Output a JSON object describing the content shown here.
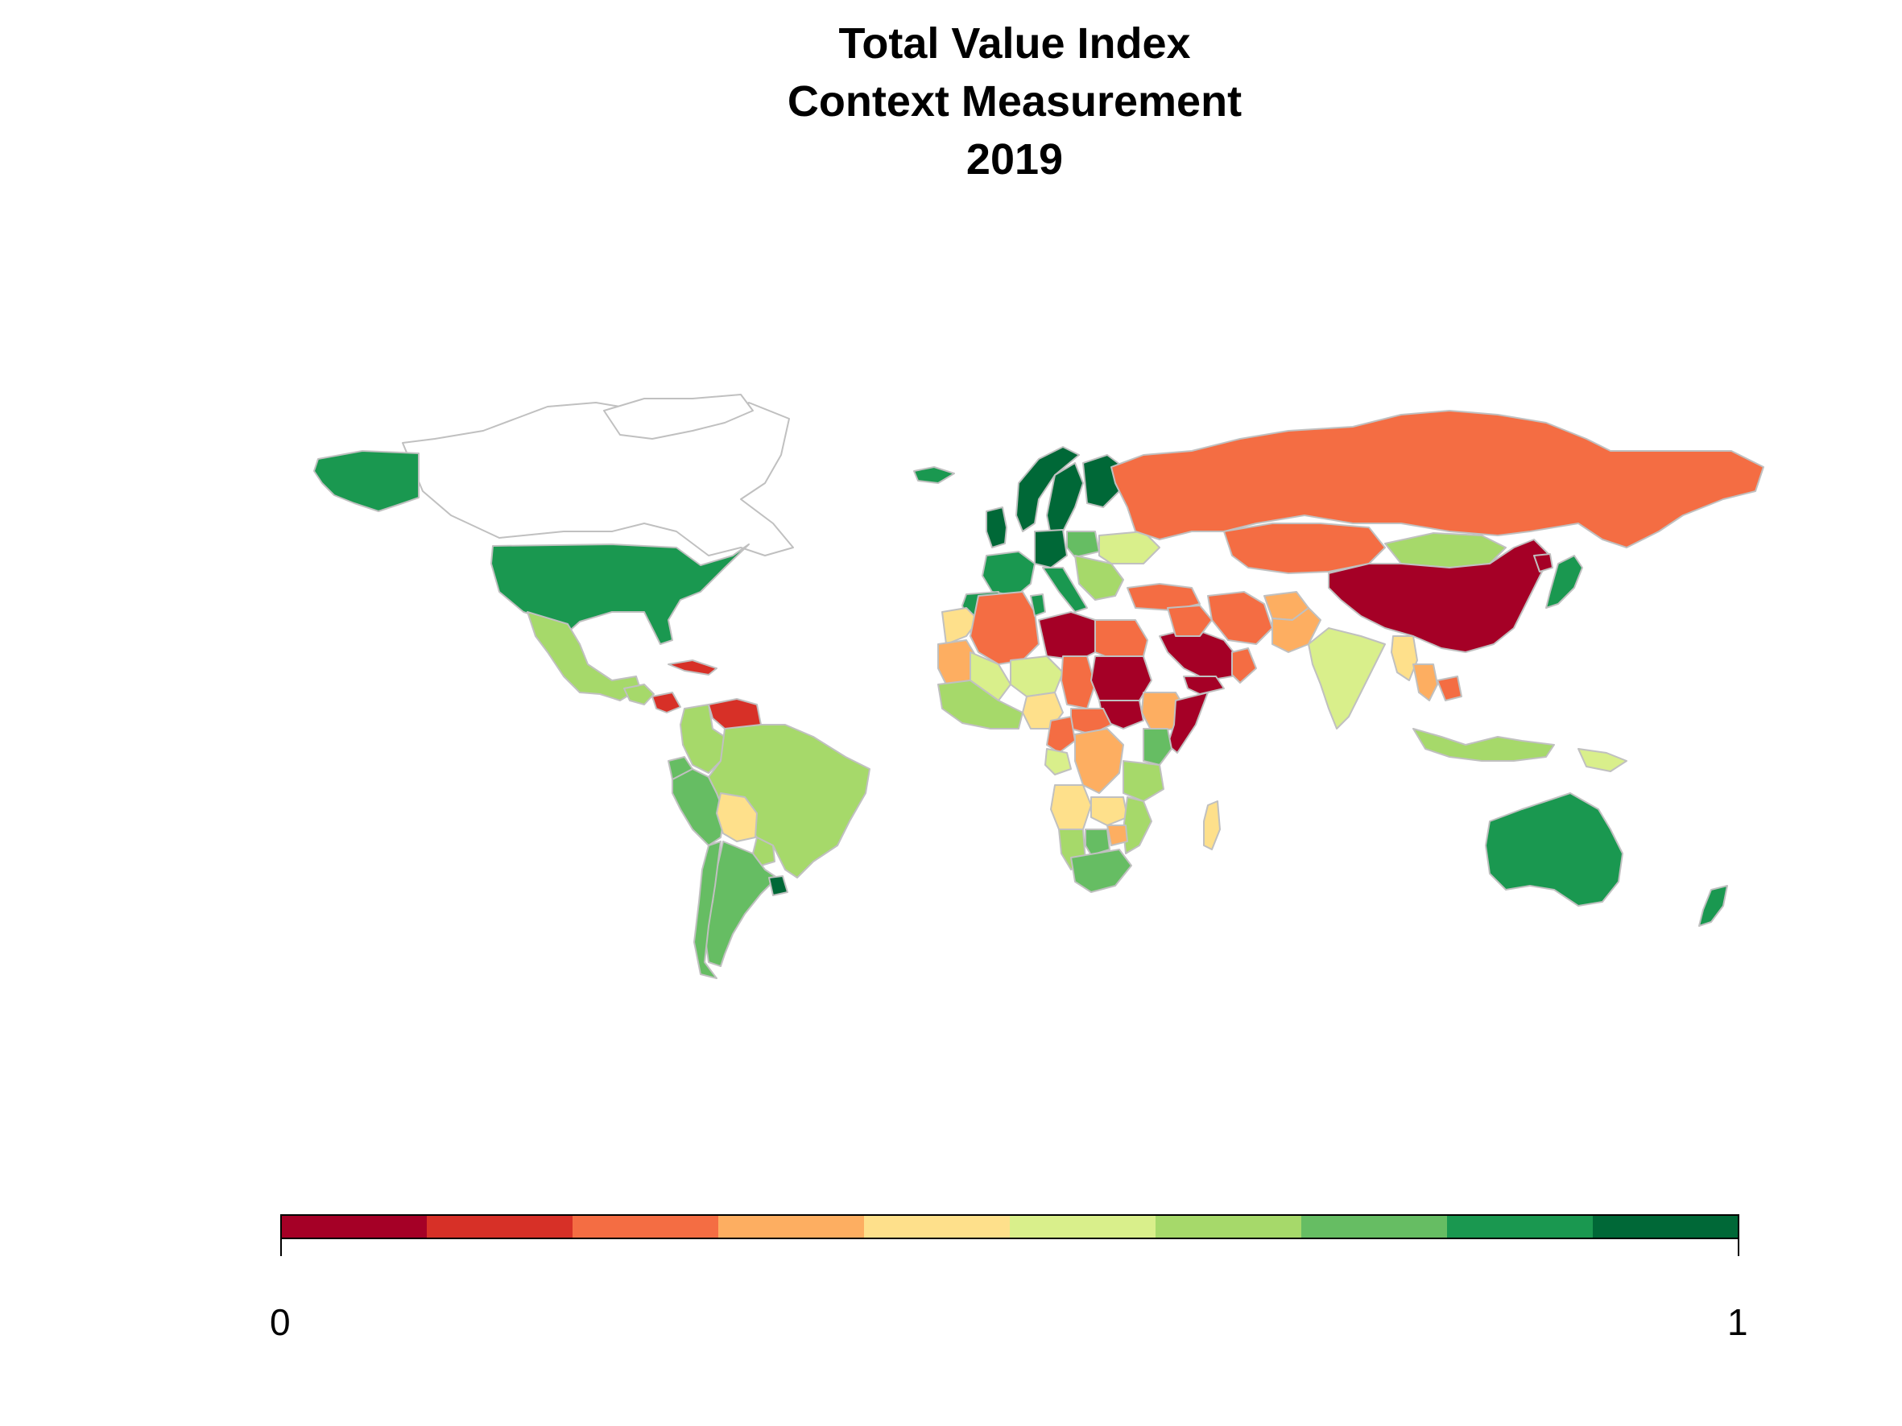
{
  "title": {
    "line1": "Total Value Index",
    "line2": "Context Measurement",
    "line3": "2019"
  },
  "legend": {
    "min_label": "0",
    "max_label": "1",
    "range": [
      0,
      1
    ],
    "palette": [
      "#a50026",
      "#d73027",
      "#f46d43",
      "#fdae61",
      "#fee08b",
      "#d9ef8b",
      "#a6d96a",
      "#66bd63",
      "#1a9850",
      "#006837"
    ]
  },
  "map": {
    "type": "choropleth",
    "projection": "equirectangular",
    "border_color": "#c0c0c0",
    "no_data_fill": "#ffffff",
    "regions": [
      {
        "name": "Canada",
        "bin": null
      },
      {
        "name": "United States",
        "bin": 8
      },
      {
        "name": "Alaska",
        "bin": 8
      },
      {
        "name": "Mexico",
        "bin": 6
      },
      {
        "name": "Guatemala",
        "bin": 6
      },
      {
        "name": "Nicaragua",
        "bin": 1
      },
      {
        "name": "Cuba",
        "bin": 1
      },
      {
        "name": "Venezuela",
        "bin": 1
      },
      {
        "name": "Colombia",
        "bin": 6
      },
      {
        "name": "Ecuador",
        "bin": 7
      },
      {
        "name": "Peru",
        "bin": 7
      },
      {
        "name": "Brazil",
        "bin": 6
      },
      {
        "name": "Bolivia",
        "bin": 4
      },
      {
        "name": "Paraguay",
        "bin": 6
      },
      {
        "name": "Argentina",
        "bin": 7
      },
      {
        "name": "Chile",
        "bin": 7
      },
      {
        "name": "Uruguay",
        "bin": 9
      },
      {
        "name": "Greenland",
        "bin": null
      },
      {
        "name": "Iceland",
        "bin": 8
      },
      {
        "name": "Norway",
        "bin": 9
      },
      {
        "name": "Sweden",
        "bin": 9
      },
      {
        "name": "Finland",
        "bin": 9
      },
      {
        "name": "United Kingdom",
        "bin": 9
      },
      {
        "name": "France",
        "bin": 8
      },
      {
        "name": "Spain",
        "bin": 8
      },
      {
        "name": "Germany",
        "bin": 9
      },
      {
        "name": "Poland",
        "bin": 7
      },
      {
        "name": "Ukraine",
        "bin": 5
      },
      {
        "name": "Italy",
        "bin": 8
      },
      {
        "name": "Balkans",
        "bin": 6
      },
      {
        "name": "Turkey",
        "bin": 2
      },
      {
        "name": "Russia",
        "bin": 2
      },
      {
        "name": "Kazakhstan",
        "bin": 2
      },
      {
        "name": "Mongolia",
        "bin": 6
      },
      {
        "name": "China",
        "bin": 0
      },
      {
        "name": "North Korea",
        "bin": 0
      },
      {
        "name": "Japan",
        "bin": 8
      },
      {
        "name": "Iran",
        "bin": 2
      },
      {
        "name": "Afghanistan",
        "bin": 3
      },
      {
        "name": "Pakistan",
        "bin": 3
      },
      {
        "name": "India",
        "bin": 5
      },
      {
        "name": "Myanmar",
        "bin": 4
      },
      {
        "name": "Thailand",
        "bin": 3
      },
      {
        "name": "Cambodia",
        "bin": 2
      },
      {
        "name": "Indonesia",
        "bin": 6
      },
      {
        "name": "Papua New Guinea",
        "bin": 5
      },
      {
        "name": "Australia",
        "bin": 8
      },
      {
        "name": "New Zealand",
        "bin": 8
      },
      {
        "name": "Saudi Arabia",
        "bin": 0
      },
      {
        "name": "Yemen",
        "bin": 0
      },
      {
        "name": "Oman",
        "bin": 2
      },
      {
        "name": "Iraq",
        "bin": 2
      },
      {
        "name": "Morocco",
        "bin": 4
      },
      {
        "name": "Algeria",
        "bin": 2
      },
      {
        "name": "Libya",
        "bin": 0
      },
      {
        "name": "Egypt",
        "bin": 2
      },
      {
        "name": "Tunisia",
        "bin": 8
      },
      {
        "name": "Mauritania",
        "bin": 3
      },
      {
        "name": "Mali",
        "bin": 5
      },
      {
        "name": "Niger",
        "bin": 5
      },
      {
        "name": "Chad",
        "bin": 2
      },
      {
        "name": "Sudan",
        "bin": 0
      },
      {
        "name": "South Sudan",
        "bin": 0
      },
      {
        "name": "Ethiopia",
        "bin": 3
      },
      {
        "name": "Somalia",
        "bin": 0
      },
      {
        "name": "Nigeria",
        "bin": 4
      },
      {
        "name": "West Africa coast",
        "bin": 6
      },
      {
        "name": "Central African Republic",
        "bin": 2
      },
      {
        "name": "Cameroon",
        "bin": 2
      },
      {
        "name": "DR Congo",
        "bin": 3
      },
      {
        "name": "Gabon",
        "bin": 5
      },
      {
        "name": "Kenya",
        "bin": 7
      },
      {
        "name": "Tanzania",
        "bin": 6
      },
      {
        "name": "Angola",
        "bin": 4
      },
      {
        "name": "Zambia",
        "bin": 4
      },
      {
        "name": "Mozambique",
        "bin": 6
      },
      {
        "name": "Zimbabwe",
        "bin": 3
      },
      {
        "name": "Namibia",
        "bin": 6
      },
      {
        "name": "Botswana",
        "bin": 7
      },
      {
        "name": "South Africa",
        "bin": 7
      },
      {
        "name": "Madagascar",
        "bin": 4
      }
    ]
  }
}
